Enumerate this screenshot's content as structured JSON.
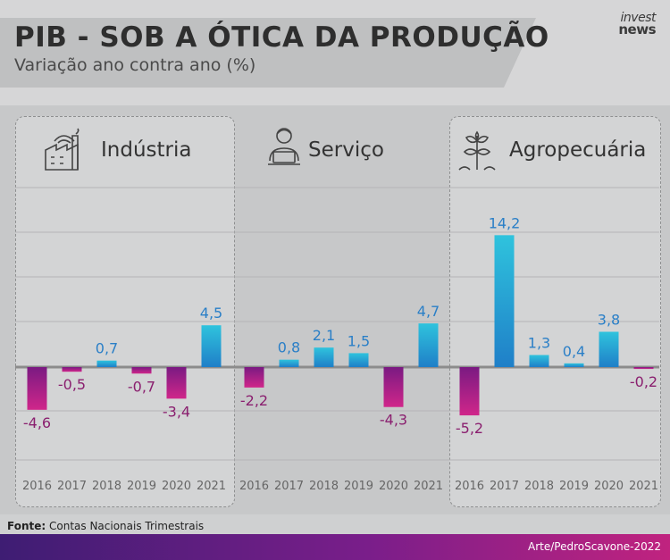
{
  "header": {
    "title": "PIB - SOB A ÓTICA DA PRODUÇÃO",
    "subtitle": "Variação ano contra ano (%)",
    "logo_top": "invest",
    "logo_bottom": "news"
  },
  "footer": {
    "source_label": "Fonte:",
    "source_text": "Contas Nacionais Trimestrais",
    "credit": "Arte/PedroScavone-2022"
  },
  "colors": {
    "positive_top": "#2fc3dd",
    "positive_bottom": "#1f7fc8",
    "negative_top": "#7a1a82",
    "negative_bottom": "#d0268a",
    "positive_label": "#2a7fc7",
    "negative_label": "#8a1f6f"
  },
  "chart_data": [
    {
      "type": "bar",
      "title": "Indústria",
      "icon": "factory-icon",
      "categories": [
        "2016",
        "2017",
        "2018",
        "2019",
        "2020",
        "2021"
      ],
      "values": [
        -4.6,
        -0.5,
        0.7,
        -0.7,
        -3.4,
        4.5
      ],
      "labels": [
        "-4,6",
        "-0,5",
        "0,7",
        "-0,7",
        "-3,4",
        "4,5"
      ]
    },
    {
      "type": "bar",
      "title": "Serviço",
      "icon": "worker-laptop-icon",
      "categories": [
        "2016",
        "2017",
        "2018",
        "2019",
        "2020",
        "2021"
      ],
      "values": [
        -2.2,
        0.8,
        2.1,
        1.5,
        -4.3,
        4.7
      ],
      "labels": [
        "-2,2",
        "0,8",
        "2,1",
        "1,5",
        "-4,3",
        "4,7"
      ]
    },
    {
      "type": "bar",
      "title": "Agropecuária",
      "icon": "plant-icon",
      "categories": [
        "2016",
        "2017",
        "2018",
        "2019",
        "2020",
        "2021"
      ],
      "values": [
        -5.2,
        14.2,
        1.3,
        0.4,
        3.8,
        -0.2
      ],
      "labels": [
        "-5,2",
        "14,2",
        "1,3",
        "0,4",
        "3,8",
        "-0,2"
      ]
    }
  ]
}
